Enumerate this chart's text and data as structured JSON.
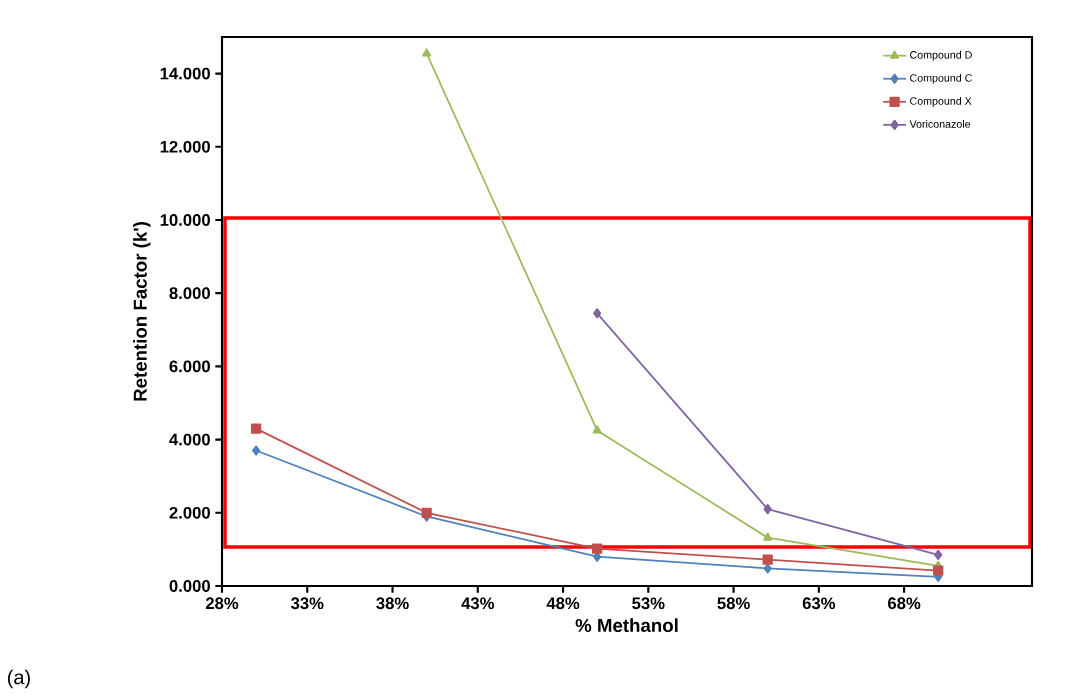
{
  "chart_data": {
    "type": "line",
    "xlabel": "% Methanol",
    "ylabel": "Retention Factor (k')",
    "x": [
      30,
      40,
      50,
      60,
      70
    ],
    "series": [
      {
        "name": "Compound D",
        "color": "#9bbb59",
        "marker": "triangle",
        "values": [
          null,
          14.55,
          4.25,
          1.32,
          0.55
        ]
      },
      {
        "name": "Compound C",
        "color": "#4f81bd",
        "marker": "diamond",
        "values": [
          3.7,
          1.9,
          0.8,
          0.48,
          0.25
        ]
      },
      {
        "name": "Compound X",
        "color": "#c0504d",
        "marker": "square",
        "values": [
          4.3,
          2.0,
          1.02,
          0.72,
          0.42
        ]
      },
      {
        "name": "Voriconazole",
        "color": "#8064a2",
        "marker": "diamond",
        "values": [
          null,
          null,
          7.45,
          2.1,
          0.85
        ]
      }
    ],
    "xlim": [
      28,
      75.5
    ],
    "ylim": [
      0,
      15
    ],
    "xticks": [
      {
        "value": 28,
        "label": "28%"
      },
      {
        "value": 33,
        "label": "33%"
      },
      {
        "value": 38,
        "label": "38%"
      },
      {
        "value": 43,
        "label": "43%"
      },
      {
        "value": 48,
        "label": "48%"
      },
      {
        "value": 53,
        "label": "53%"
      },
      {
        "value": 58,
        "label": "58%"
      },
      {
        "value": 63,
        "label": "63%"
      },
      {
        "value": 68,
        "label": "68%"
      }
    ],
    "yticks": [
      {
        "value": 0,
        "label": "0.000"
      },
      {
        "value": 2,
        "label": "2.000"
      },
      {
        "value": 4,
        "label": "4.000"
      },
      {
        "value": 6,
        "label": "6.000"
      },
      {
        "value": 8,
        "label": "8.000"
      },
      {
        "value": 10,
        "label": "10.000"
      },
      {
        "value": 12,
        "label": "12.000"
      },
      {
        "value": 14,
        "label": "14.000"
      }
    ],
    "annotations": [
      "(a)"
    ],
    "grid": false,
    "legend": "top right",
    "line_style": "solid"
  }
}
